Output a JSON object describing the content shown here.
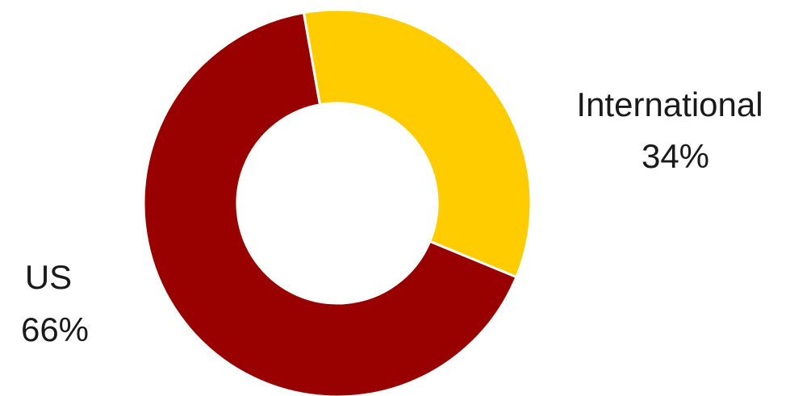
{
  "chart_data": {
    "type": "pie",
    "subtype": "donut",
    "title": "",
    "slices": [
      {
        "label": "International",
        "percent_label": "34%",
        "value": 34,
        "color": "#FFCC00"
      },
      {
        "label": "US",
        "percent_label": "66%",
        "value": 66,
        "color": "#990000"
      }
    ],
    "legend": "none",
    "slice_separator_color": "#ffffff"
  }
}
